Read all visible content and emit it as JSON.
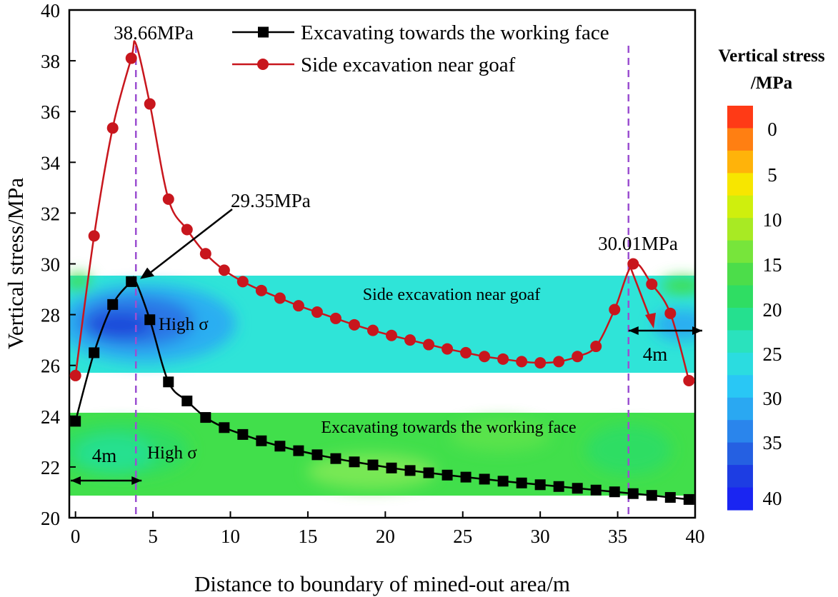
{
  "chart_data": {
    "type": "line",
    "title": "",
    "xlabel": "Distance to boundary of mined-out area/m",
    "ylabel": "Vertical stress/MPa",
    "xlim": [
      -0.4,
      40
    ],
    "ylim": [
      20,
      40
    ],
    "xticks": [
      0,
      5,
      10,
      15,
      20,
      25,
      30,
      35,
      40
    ],
    "yticks": [
      20,
      22,
      24,
      26,
      28,
      30,
      32,
      34,
      36,
      38,
      40
    ],
    "legend_position": "top-center",
    "series": [
      {
        "name": "Excavating towards the working face",
        "marker": "square",
        "color": "#000000",
        "x": [
          0,
          1.2,
          2.4,
          3.6,
          4.8,
          6.0,
          7.2,
          8.4,
          9.6,
          10.8,
          12.0,
          13.2,
          14.4,
          15.6,
          16.8,
          18.0,
          19.2,
          20.4,
          21.6,
          22.8,
          24.0,
          25.2,
          26.4,
          27.6,
          28.8,
          30.0,
          31.2,
          32.4,
          33.6,
          34.8,
          36.0,
          37.2,
          38.4,
          39.6
        ],
        "y": [
          23.8,
          26.5,
          28.4,
          29.3,
          27.8,
          25.35,
          24.6,
          23.95,
          23.55,
          23.28,
          23.03,
          22.82,
          22.64,
          22.48,
          22.33,
          22.2,
          22.08,
          21.96,
          21.86,
          21.77,
          21.68,
          21.6,
          21.52,
          21.44,
          21.37,
          21.3,
          21.23,
          21.16,
          21.09,
          21.02,
          20.95,
          20.88,
          20.8,
          20.72
        ]
      },
      {
        "name": "Side excavation near goaf",
        "marker": "circle",
        "color": "#c8161d",
        "x": [
          0,
          1.2,
          2.4,
          3.6,
          4.8,
          6.0,
          7.2,
          8.4,
          9.6,
          10.8,
          12.0,
          13.2,
          14.4,
          15.6,
          16.8,
          18.0,
          19.2,
          20.4,
          21.6,
          22.8,
          24.0,
          25.2,
          26.4,
          27.6,
          28.8,
          30.0,
          31.2,
          32.4,
          33.6,
          34.8,
          36.0,
          37.2,
          38.4,
          39.6
        ],
        "y": [
          25.6,
          31.1,
          35.35,
          38.1,
          36.3,
          32.55,
          31.35,
          30.4,
          29.75,
          29.3,
          28.95,
          28.65,
          28.35,
          28.1,
          27.85,
          27.6,
          27.38,
          27.18,
          27.0,
          26.82,
          26.65,
          26.5,
          26.35,
          26.25,
          26.15,
          26.1,
          26.15,
          26.35,
          26.75,
          28.2,
          30.0,
          29.2,
          28.05,
          25.4
        ]
      }
    ],
    "guide_lines": [
      {
        "x": 3.9,
        "color": "#9b4fd1"
      },
      {
        "x": 35.7,
        "color": "#9b4fd1"
      }
    ],
    "annotations": [
      {
        "text": "38.66MPa",
        "x": 3.9,
        "y": 38.66
      },
      {
        "text": "29.35MPa",
        "x": 3.8,
        "y": 29.35
      },
      {
        "text": "30.01MPa",
        "x": 35.7,
        "y": 30.01
      },
      {
        "text": "4m",
        "x_from": -0.4,
        "x_to": 3.9,
        "y": 21.8,
        "label": "span"
      },
      {
        "text": "4m",
        "x_from": 35.7,
        "x_to": 40.2,
        "y": 27.3,
        "label": "span"
      }
    ],
    "contour_bands": [
      {
        "label": "Side excavation near goaf",
        "y_from": 25.7,
        "y_to": 29.5,
        "note": "High σ"
      },
      {
        "label": "Excavating towards the working face",
        "y_from": 20.8,
        "y_to": 24.1,
        "note": "High σ"
      }
    ],
    "colorbar": {
      "title_line1": "Vertical stress",
      "title_line2": "/MPa",
      "labels": [
        "0",
        "5",
        "10",
        "15",
        "20",
        "25",
        "30",
        "35",
        "40"
      ],
      "colors": [
        "#ff3a16",
        "#ff7f12",
        "#ffb30a",
        "#f7e600",
        "#cfef0d",
        "#a8ea23",
        "#77e53b",
        "#4cdd4a",
        "#2fdd63",
        "#25e08f",
        "#2ae2bd",
        "#2bdce0",
        "#29c7f5",
        "#2aa8f2",
        "#2a85ec",
        "#2560e2",
        "#1d3de3",
        "#1a25f2"
      ]
    },
    "band_colors": {
      "cyan": "#2fe4d8",
      "green": "#41df4b",
      "light_green": "#78e855",
      "blue_light": "#2aaef1",
      "blue_mid": "#2b77e6",
      "blue_deep": "#1f49da"
    }
  },
  "text": {
    "band1_label": "Side excavation near goaf",
    "band2_label": "Excavating towards the working face",
    "high_sigma_1": "High σ",
    "high_sigma_2": "High σ"
  }
}
